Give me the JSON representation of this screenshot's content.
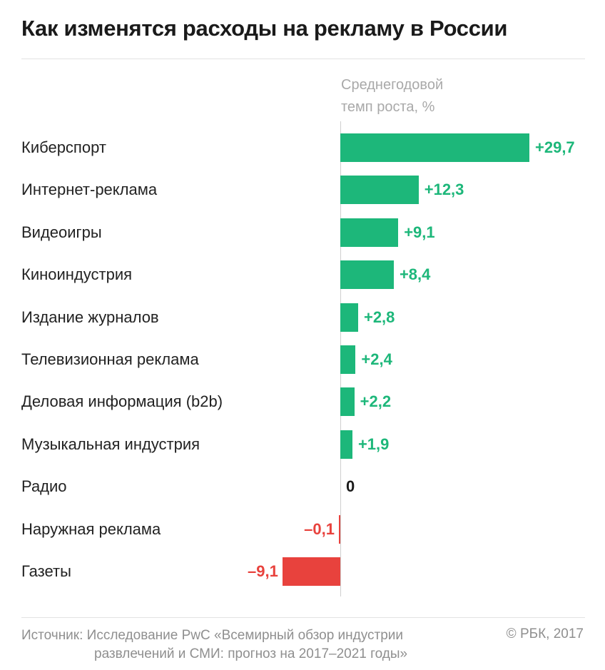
{
  "chart_data": {
    "type": "bar",
    "orientation": "horizontal",
    "title": "Как изменятся расходы на рекламу в России",
    "subtitle": "Среднегодовой темп роста, %",
    "categories": [
      "Киберспорт",
      "Интернет-реклама",
      "Видеоигры",
      "Киноиндустрия",
      "Издание журналов",
      "Телевизионная реклама",
      "Деловая информация (b2b)",
      "Музыкальная индустрия",
      "Радио",
      "Наружная реклама",
      "Газеты"
    ],
    "values": [
      29.7,
      12.3,
      9.1,
      8.4,
      2.8,
      2.4,
      2.2,
      1.9,
      0,
      -0.1,
      -9.1
    ],
    "labels": [
      "+29,7",
      "+12,3",
      "+9,1",
      "+8,4",
      "+2,8",
      "+2,4",
      "+2,2",
      "+1,9",
      "0",
      "–0,1",
      "–9,1"
    ],
    "colors": {
      "positive": "#1db77a",
      "negative": "#e8423d",
      "zero": "#1a1a1a"
    },
    "xlim": [
      -9.1,
      29.7
    ],
    "grid": false
  },
  "footer": {
    "source_line1": "Источник: Исследование PwC «Всемирный обзор индустрии",
    "source_line2": "развлечений и СМИ: прогноз на 2017–2021 годы»",
    "copyright": "© РБК, 2017"
  }
}
